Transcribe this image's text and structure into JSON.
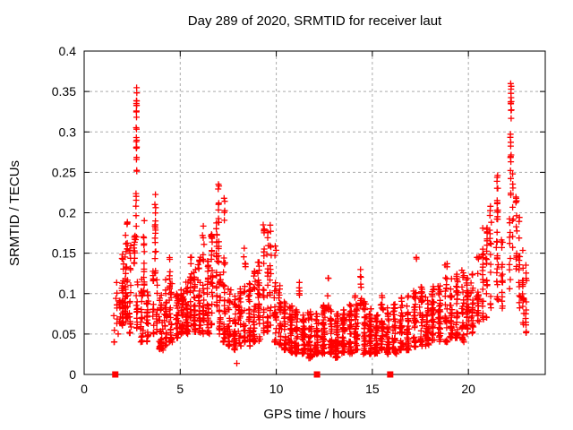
{
  "chart_data": {
    "type": "scatter",
    "title": "Day 289 of 2020, SRMTID for receiver laut",
    "xlabel": "GPS time / hours",
    "ylabel": "SRMTID / TECUs",
    "xlim": [
      0,
      24
    ],
    "ylim": [
      0,
      0.4
    ],
    "xticks": [
      "0",
      "5",
      "10",
      "15",
      "20"
    ],
    "yticks": [
      "0",
      "0.05",
      "0.1",
      "0.15",
      "0.2",
      "0.25",
      "0.3",
      "0.35",
      "0.4"
    ],
    "grid": {
      "show": true,
      "style": "dashed",
      "color": "#ababab"
    },
    "axis_color": "#000000",
    "background": "#ffffff",
    "marker": {
      "shape": "plus",
      "size": 7,
      "color": "#ff0000"
    },
    "zero_marker": {
      "shape": "filled-square",
      "size": 7,
      "color": "#ff0000",
      "y": 0,
      "x_hours": [
        1.62,
        12.12,
        15.93
      ]
    },
    "seed": 2020289,
    "cluster_fields": [
      "x_center_hours",
      "x_halfwidth_hours",
      "count",
      "y_min_tecu",
      "y_max_tecu",
      "bottom_bias"
    ],
    "point_clusters": [
      [
        1.55,
        0.05,
        4,
        0.04,
        0.075,
        1.5
      ],
      [
        1.7,
        0.08,
        10,
        0.05,
        0.13,
        1.2
      ],
      [
        1.85,
        0.05,
        8,
        0.06,
        0.11,
        1.0
      ],
      [
        2.0,
        0.06,
        30,
        0.06,
        0.155,
        1.6
      ],
      [
        2.15,
        0.05,
        25,
        0.06,
        0.175,
        1.4
      ],
      [
        2.25,
        0.04,
        18,
        0.07,
        0.215,
        1.5
      ],
      [
        2.4,
        0.07,
        20,
        0.05,
        0.16,
        1.5
      ],
      [
        2.62,
        0.04,
        12,
        0.13,
        0.175,
        1.0
      ],
      [
        2.72,
        0.03,
        10,
        0.25,
        0.3,
        0.9
      ],
      [
        2.73,
        0.03,
        12,
        0.3,
        0.357,
        0.9
      ],
      [
        2.7,
        0.04,
        8,
        0.15,
        0.225,
        1.0
      ],
      [
        2.75,
        0.06,
        15,
        0.05,
        0.13,
        1.2
      ],
      [
        3.0,
        0.08,
        25,
        0.04,
        0.12,
        1.4
      ],
      [
        3.12,
        0.04,
        15,
        0.1,
        0.2,
        1.1
      ],
      [
        3.3,
        0.09,
        25,
        0.04,
        0.115,
        1.4
      ],
      [
        3.6,
        0.05,
        15,
        0.05,
        0.13,
        1.3
      ],
      [
        3.7,
        0.04,
        18,
        0.12,
        0.225,
        1.0
      ],
      [
        3.78,
        0.05,
        12,
        0.05,
        0.14,
        1.2
      ],
      [
        4.0,
        0.12,
        35,
        0.03,
        0.1,
        1.5
      ],
      [
        4.25,
        0.1,
        25,
        0.035,
        0.12,
        1.5
      ],
      [
        4.5,
        0.1,
        30,
        0.04,
        0.125,
        1.4
      ],
      [
        4.45,
        0.03,
        6,
        0.1,
        0.155,
        1.0
      ],
      [
        4.85,
        0.12,
        35,
        0.045,
        0.1,
        1.5
      ],
      [
        5.1,
        0.1,
        35,
        0.05,
        0.105,
        1.4
      ],
      [
        5.35,
        0.08,
        30,
        0.05,
        0.12,
        1.4
      ],
      [
        5.55,
        0.05,
        20,
        0.06,
        0.165,
        1.3
      ],
      [
        5.75,
        0.08,
        30,
        0.05,
        0.13,
        1.4
      ],
      [
        6.0,
        0.08,
        30,
        0.05,
        0.145,
        1.4
      ],
      [
        6.2,
        0.06,
        25,
        0.05,
        0.19,
        1.6
      ],
      [
        6.45,
        0.08,
        30,
        0.05,
        0.15,
        1.5
      ],
      [
        6.65,
        0.06,
        25,
        0.06,
        0.175,
        1.4
      ],
      [
        6.9,
        0.05,
        20,
        0.08,
        0.2,
        1.2
      ],
      [
        7.0,
        0.03,
        15,
        0.13,
        0.245,
        1.1
      ],
      [
        7.05,
        0.06,
        20,
        0.05,
        0.13,
        1.3
      ],
      [
        7.3,
        0.02,
        5,
        0.185,
        0.235,
        1.0
      ],
      [
        7.3,
        0.08,
        30,
        0.04,
        0.15,
        1.6
      ],
      [
        7.55,
        0.1,
        30,
        0.035,
        0.11,
        1.5
      ],
      [
        7.85,
        0.1,
        30,
        0.03,
        0.1,
        1.5
      ],
      [
        7.95,
        0.01,
        1,
        0.012,
        0.015,
        1.0
      ],
      [
        8.1,
        0.1,
        30,
        0.035,
        0.115,
        1.5
      ],
      [
        8.35,
        0.07,
        25,
        0.04,
        0.165,
        1.7
      ],
      [
        8.6,
        0.08,
        30,
        0.035,
        0.12,
        1.5
      ],
      [
        8.85,
        0.08,
        30,
        0.04,
        0.13,
        1.5
      ],
      [
        9.1,
        0.07,
        28,
        0.04,
        0.15,
        1.5
      ],
      [
        9.35,
        0.05,
        22,
        0.05,
        0.2,
        1.4
      ],
      [
        9.55,
        0.05,
        22,
        0.05,
        0.195,
        1.3
      ],
      [
        9.7,
        0.04,
        15,
        0.06,
        0.185,
        1.2
      ],
      [
        9.95,
        0.07,
        25,
        0.04,
        0.16,
        1.6
      ],
      [
        10.2,
        0.08,
        28,
        0.035,
        0.11,
        1.5
      ],
      [
        10.45,
        0.08,
        28,
        0.03,
        0.09,
        1.4
      ],
      [
        10.75,
        0.12,
        40,
        0.025,
        0.085,
        1.4
      ],
      [
        11.05,
        0.12,
        40,
        0.025,
        0.08,
        1.4
      ],
      [
        11.2,
        0.03,
        6,
        0.09,
        0.125,
        1.0
      ],
      [
        11.4,
        0.12,
        40,
        0.025,
        0.075,
        1.4
      ],
      [
        11.75,
        0.12,
        42,
        0.02,
        0.08,
        1.4
      ],
      [
        12.1,
        0.12,
        42,
        0.025,
        0.08,
        1.4
      ],
      [
        12.45,
        0.12,
        42,
        0.025,
        0.09,
        1.5
      ],
      [
        12.7,
        0.05,
        10,
        0.08,
        0.13,
        1.2
      ],
      [
        12.85,
        0.1,
        38,
        0.025,
        0.085,
        1.4
      ],
      [
        13.15,
        0.12,
        42,
        0.02,
        0.075,
        1.4
      ],
      [
        13.5,
        0.12,
        42,
        0.025,
        0.08,
        1.4
      ],
      [
        13.85,
        0.12,
        40,
        0.025,
        0.09,
        1.4
      ],
      [
        14.15,
        0.1,
        38,
        0.03,
        0.1,
        1.5
      ],
      [
        14.4,
        0.05,
        12,
        0.08,
        0.145,
        1.2
      ],
      [
        14.6,
        0.1,
        38,
        0.025,
        0.09,
        1.4
      ],
      [
        14.9,
        0.1,
        38,
        0.025,
        0.085,
        1.4
      ],
      [
        15.2,
        0.1,
        38,
        0.025,
        0.08,
        1.4
      ],
      [
        15.5,
        0.1,
        38,
        0.03,
        0.1,
        1.5
      ],
      [
        15.8,
        0.1,
        36,
        0.025,
        0.085,
        1.4
      ],
      [
        16.15,
        0.12,
        38,
        0.025,
        0.09,
        1.4
      ],
      [
        16.5,
        0.12,
        38,
        0.03,
        0.095,
        1.4
      ],
      [
        16.85,
        0.1,
        35,
        0.03,
        0.1,
        1.4
      ],
      [
        17.2,
        0.1,
        35,
        0.03,
        0.105,
        1.4
      ],
      [
        17.3,
        0.02,
        2,
        0.14,
        0.15,
        1.0
      ],
      [
        17.55,
        0.1,
        35,
        0.035,
        0.11,
        1.4
      ],
      [
        17.85,
        0.1,
        35,
        0.035,
        0.1,
        1.4
      ],
      [
        18.15,
        0.1,
        35,
        0.04,
        0.11,
        1.4
      ],
      [
        18.5,
        0.1,
        35,
        0.04,
        0.12,
        1.4
      ],
      [
        18.85,
        0.08,
        30,
        0.04,
        0.145,
        1.5
      ],
      [
        19.1,
        0.08,
        32,
        0.045,
        0.12,
        1.4
      ],
      [
        19.4,
        0.08,
        32,
        0.045,
        0.125,
        1.4
      ],
      [
        19.7,
        0.08,
        30,
        0.04,
        0.13,
        1.4
      ],
      [
        19.95,
        0.08,
        28,
        0.05,
        0.12,
        1.3
      ],
      [
        20.2,
        0.08,
        25,
        0.05,
        0.13,
        1.3
      ],
      [
        20.5,
        0.07,
        22,
        0.06,
        0.15,
        1.3
      ],
      [
        20.75,
        0.06,
        20,
        0.06,
        0.185,
        1.3
      ],
      [
        20.95,
        0.05,
        18,
        0.07,
        0.2,
        1.3
      ],
      [
        21.15,
        0.05,
        16,
        0.08,
        0.21,
        1.2
      ],
      [
        21.5,
        0.04,
        14,
        0.185,
        0.25,
        1.0
      ],
      [
        21.5,
        0.05,
        18,
        0.09,
        0.18,
        1.2
      ],
      [
        21.75,
        0.05,
        16,
        0.08,
        0.17,
        1.2
      ],
      [
        22.15,
        0.04,
        10,
        0.1,
        0.2,
        1.0
      ],
      [
        22.2,
        0.03,
        12,
        0.22,
        0.3,
        1.0
      ],
      [
        22.22,
        0.03,
        12,
        0.3,
        0.36,
        1.0
      ],
      [
        22.3,
        0.04,
        8,
        0.15,
        0.25,
        1.0
      ],
      [
        22.5,
        0.05,
        14,
        0.1,
        0.22,
        1.2
      ],
      [
        22.65,
        0.05,
        14,
        0.08,
        0.2,
        1.2
      ],
      [
        22.85,
        0.05,
        16,
        0.05,
        0.155,
        1.2
      ],
      [
        23.0,
        0.04,
        12,
        0.05,
        0.145,
        1.2
      ]
    ]
  }
}
